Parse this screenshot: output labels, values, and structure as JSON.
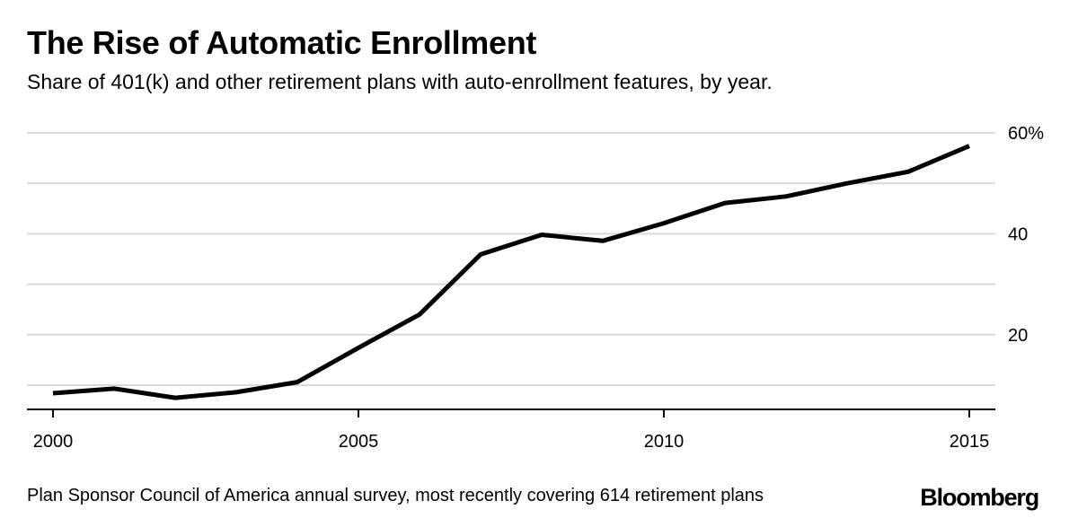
{
  "header": {
    "title": "The Rise of Automatic Enrollment",
    "subtitle": "Share of 401(k) and other retirement plans with auto-enrollment features, by year."
  },
  "footer": {
    "source": "Plan Sponsor Council of America annual survey, most recently covering 614 retirement plans",
    "brand": "Bloomberg"
  },
  "chart_data": {
    "type": "line",
    "title": "The Rise of Automatic Enrollment",
    "subtitle": "Share of 401(k) and other retirement plans with auto-enrollment features, by year.",
    "x": [
      2000,
      2001,
      2002,
      2003,
      2004,
      2005,
      2006,
      2007,
      2008,
      2009,
      2010,
      2011,
      2012,
      2013,
      2014,
      2015
    ],
    "series": [
      {
        "values": [
          8.4,
          9.3,
          7.5,
          8.6,
          10.6,
          17.4,
          24.0,
          35.9,
          39.8,
          38.6,
          42.1,
          46.1,
          47.4,
          50.0,
          52.3,
          57.4
        ]
      }
    ],
    "xlim": [
      2000,
      2015
    ],
    "xticks": [
      "2000",
      "2005",
      "2010",
      "2015"
    ],
    "xtick_values": [
      2000,
      2005,
      2010,
      2015
    ],
    "ylim": [
      5,
      60
    ],
    "yticks": [
      "60%",
      "40",
      "20"
    ],
    "ytick_values": [
      60,
      40,
      20
    ],
    "gridlines_y": [
      10,
      20,
      30,
      40,
      50,
      60
    ],
    "grid": "horizontal",
    "line_color": "#000000",
    "grid_color": "#d9d9d9",
    "axis_color": "#000000"
  }
}
